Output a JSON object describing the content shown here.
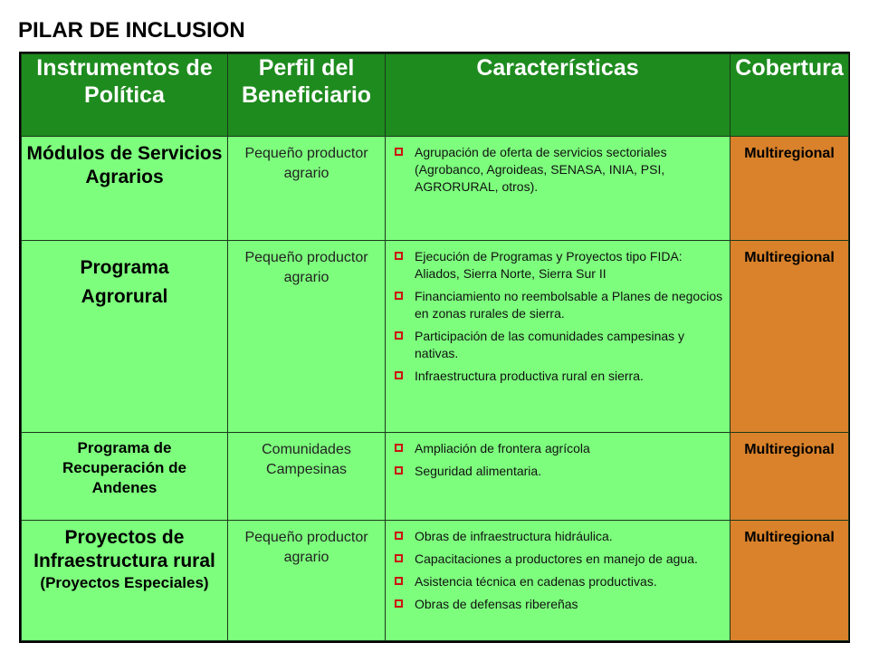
{
  "title": "PILAR DE INCLUSION",
  "headers": [
    "Instrumentos de Política",
    "Perfil del Beneficiario",
    "Características",
    "Cobertura"
  ],
  "colors": {
    "header_green": "#1e8b1e",
    "cell_green": "#7dff7d",
    "cobertura_orange": "#d9822b",
    "bullet_red": "#cc1111"
  },
  "rows": [
    {
      "instrumento": [
        "Módulos de Servicios",
        "Agrarios"
      ],
      "perfil": "Pequeño productor agrario",
      "caracteristicas": [
        "Agrupación de oferta de servicios sectoriales (Agrobanco, Agroideas, SENASA, INIA, PSI, AGRORURAL, otros)."
      ],
      "cobertura": "Multiregional"
    },
    {
      "instrumento": [
        "Programa",
        "Agrorural"
      ],
      "perfil": "Pequeño productor agrario",
      "caracteristicas": [
        "Ejecución de Programas y Proyectos tipo FIDA: Aliados, Sierra Norte, Sierra Sur II",
        "Financiamiento no reembolsable a Planes de negocios en zonas rurales de sierra.",
        "Participación de las comunidades campesinas y nativas.",
        "Infraestructura productiva rural en sierra."
      ],
      "cobertura": "Multiregional"
    },
    {
      "instrumento": [
        "Programa de",
        "Recuperación de",
        "Andenes"
      ],
      "perfil": "Comunidades Campesinas",
      "caracteristicas": [
        "Ampliación de frontera agrícola",
        "Seguridad alimentaria."
      ],
      "cobertura": "Multiregional"
    },
    {
      "instrumento": [
        "Proyectos de",
        "Infraestructura rural",
        "(Proyectos Especiales)"
      ],
      "perfil": "Pequeño productor agrario",
      "caracteristicas": [
        "Obras de infraestructura hidráulica.",
        "Capacitaciones a productores en manejo de agua.",
        "Asistencia técnica en cadenas productivas.",
        "Obras de defensas ribereñas"
      ],
      "cobertura": "Multiregional"
    }
  ]
}
